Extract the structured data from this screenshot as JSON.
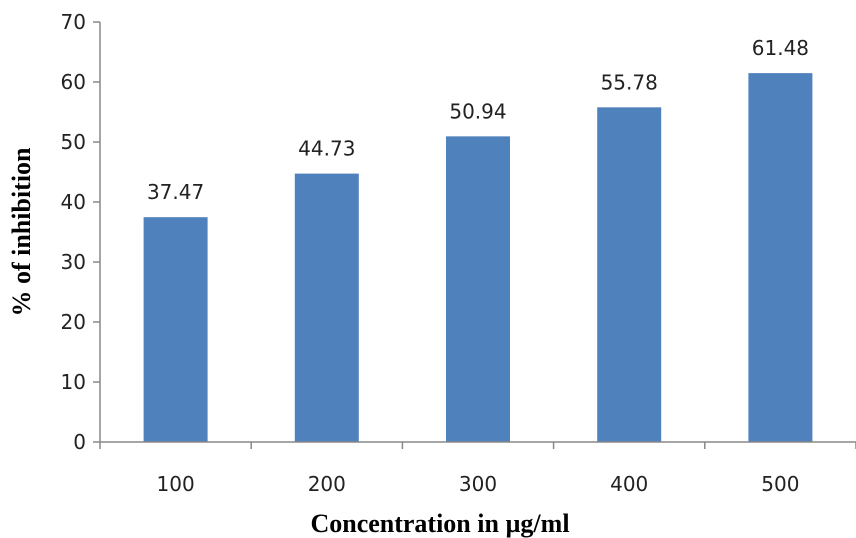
{
  "chart_data": {
    "type": "bar",
    "categories": [
      "100",
      "200",
      "300",
      "400",
      "500"
    ],
    "values": [
      37.47,
      44.73,
      50.94,
      55.78,
      61.48
    ],
    "data_labels": [
      "37.47",
      "44.73",
      "50.94",
      "55.78",
      "61.48"
    ],
    "xlabel": "Concentration in µg/ml",
    "ylabel": "% of inhibition",
    "ylim": [
      0,
      70
    ],
    "yticks": [
      "0",
      "10",
      "20",
      "30",
      "40",
      "50",
      "60",
      "70"
    ],
    "grid": false,
    "legend": "none",
    "bar_color": "#4f81bd"
  }
}
